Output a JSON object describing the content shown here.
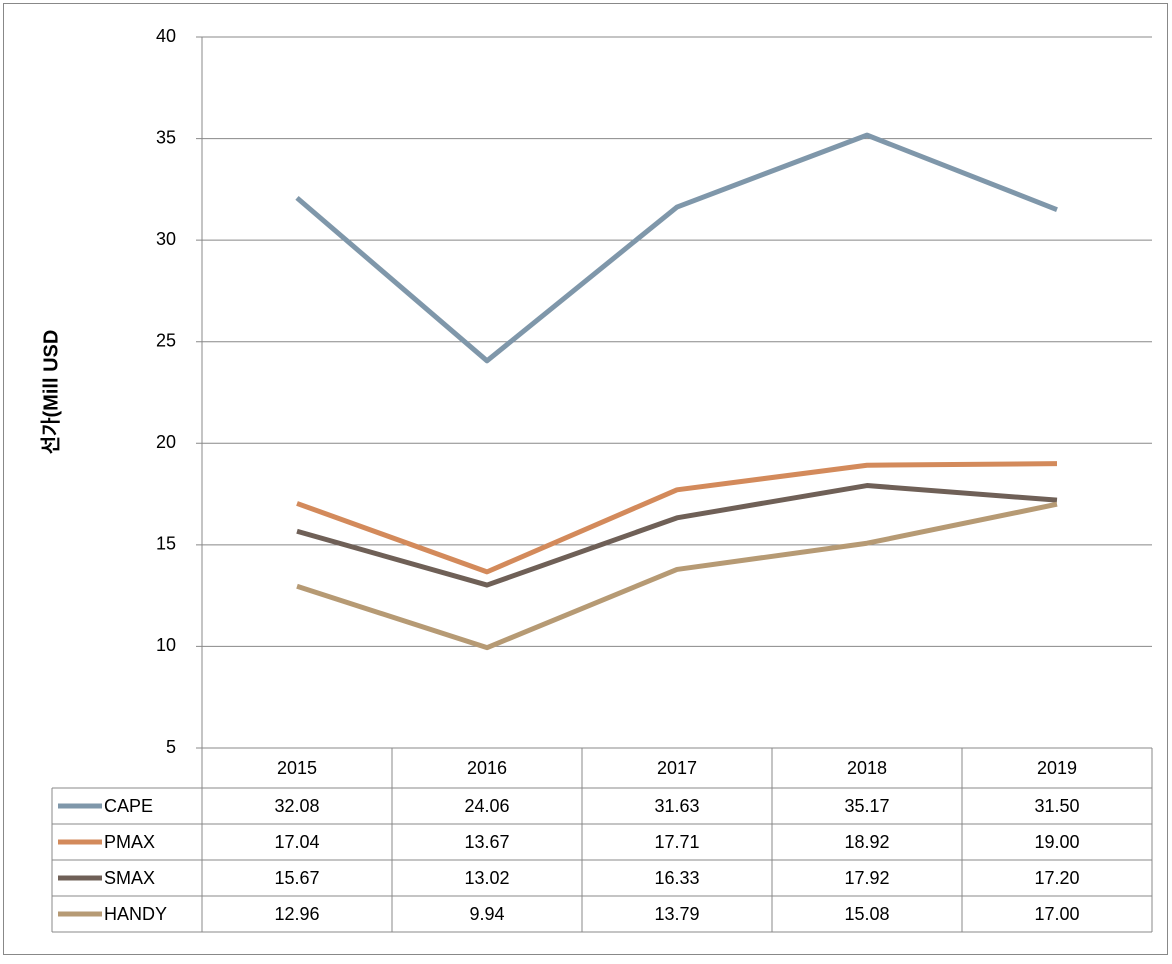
{
  "chart_data": {
    "type": "line",
    "y_label": "선가(Mill USD",
    "categories": [
      "2015",
      "2016",
      "2017",
      "2018",
      "2019"
    ],
    "series": [
      {
        "name": "CAPE",
        "color": "#7f97aa",
        "values": [
          32.08,
          24.06,
          31.63,
          35.17,
          31.5
        ],
        "value_labels": [
          "32.08",
          "24.06",
          "31.63",
          "35.17",
          "31.50"
        ]
      },
      {
        "name": "PMAX",
        "color": "#d38a5b",
        "values": [
          17.04,
          13.67,
          17.71,
          18.92,
          19.0
        ],
        "value_labels": [
          "17.04",
          "13.67",
          "17.71",
          "18.92",
          "19.00"
        ]
      },
      {
        "name": "SMAX",
        "color": "#6f6057",
        "values": [
          15.67,
          13.02,
          16.33,
          17.92,
          17.2
        ],
        "value_labels": [
          "15.67",
          "13.02",
          "16.33",
          "17.92",
          "17.20"
        ]
      },
      {
        "name": "HANDY",
        "color": "#b69a74",
        "values": [
          12.96,
          9.94,
          13.79,
          15.08,
          17.0
        ],
        "value_labels": [
          "12.96",
          "9.94",
          "13.79",
          "15.08",
          "17.00"
        ]
      }
    ],
    "ylim": [
      5,
      40
    ],
    "yticks": [
      5,
      10,
      15,
      20,
      25,
      30,
      35,
      40
    ],
    "grid": true
  }
}
